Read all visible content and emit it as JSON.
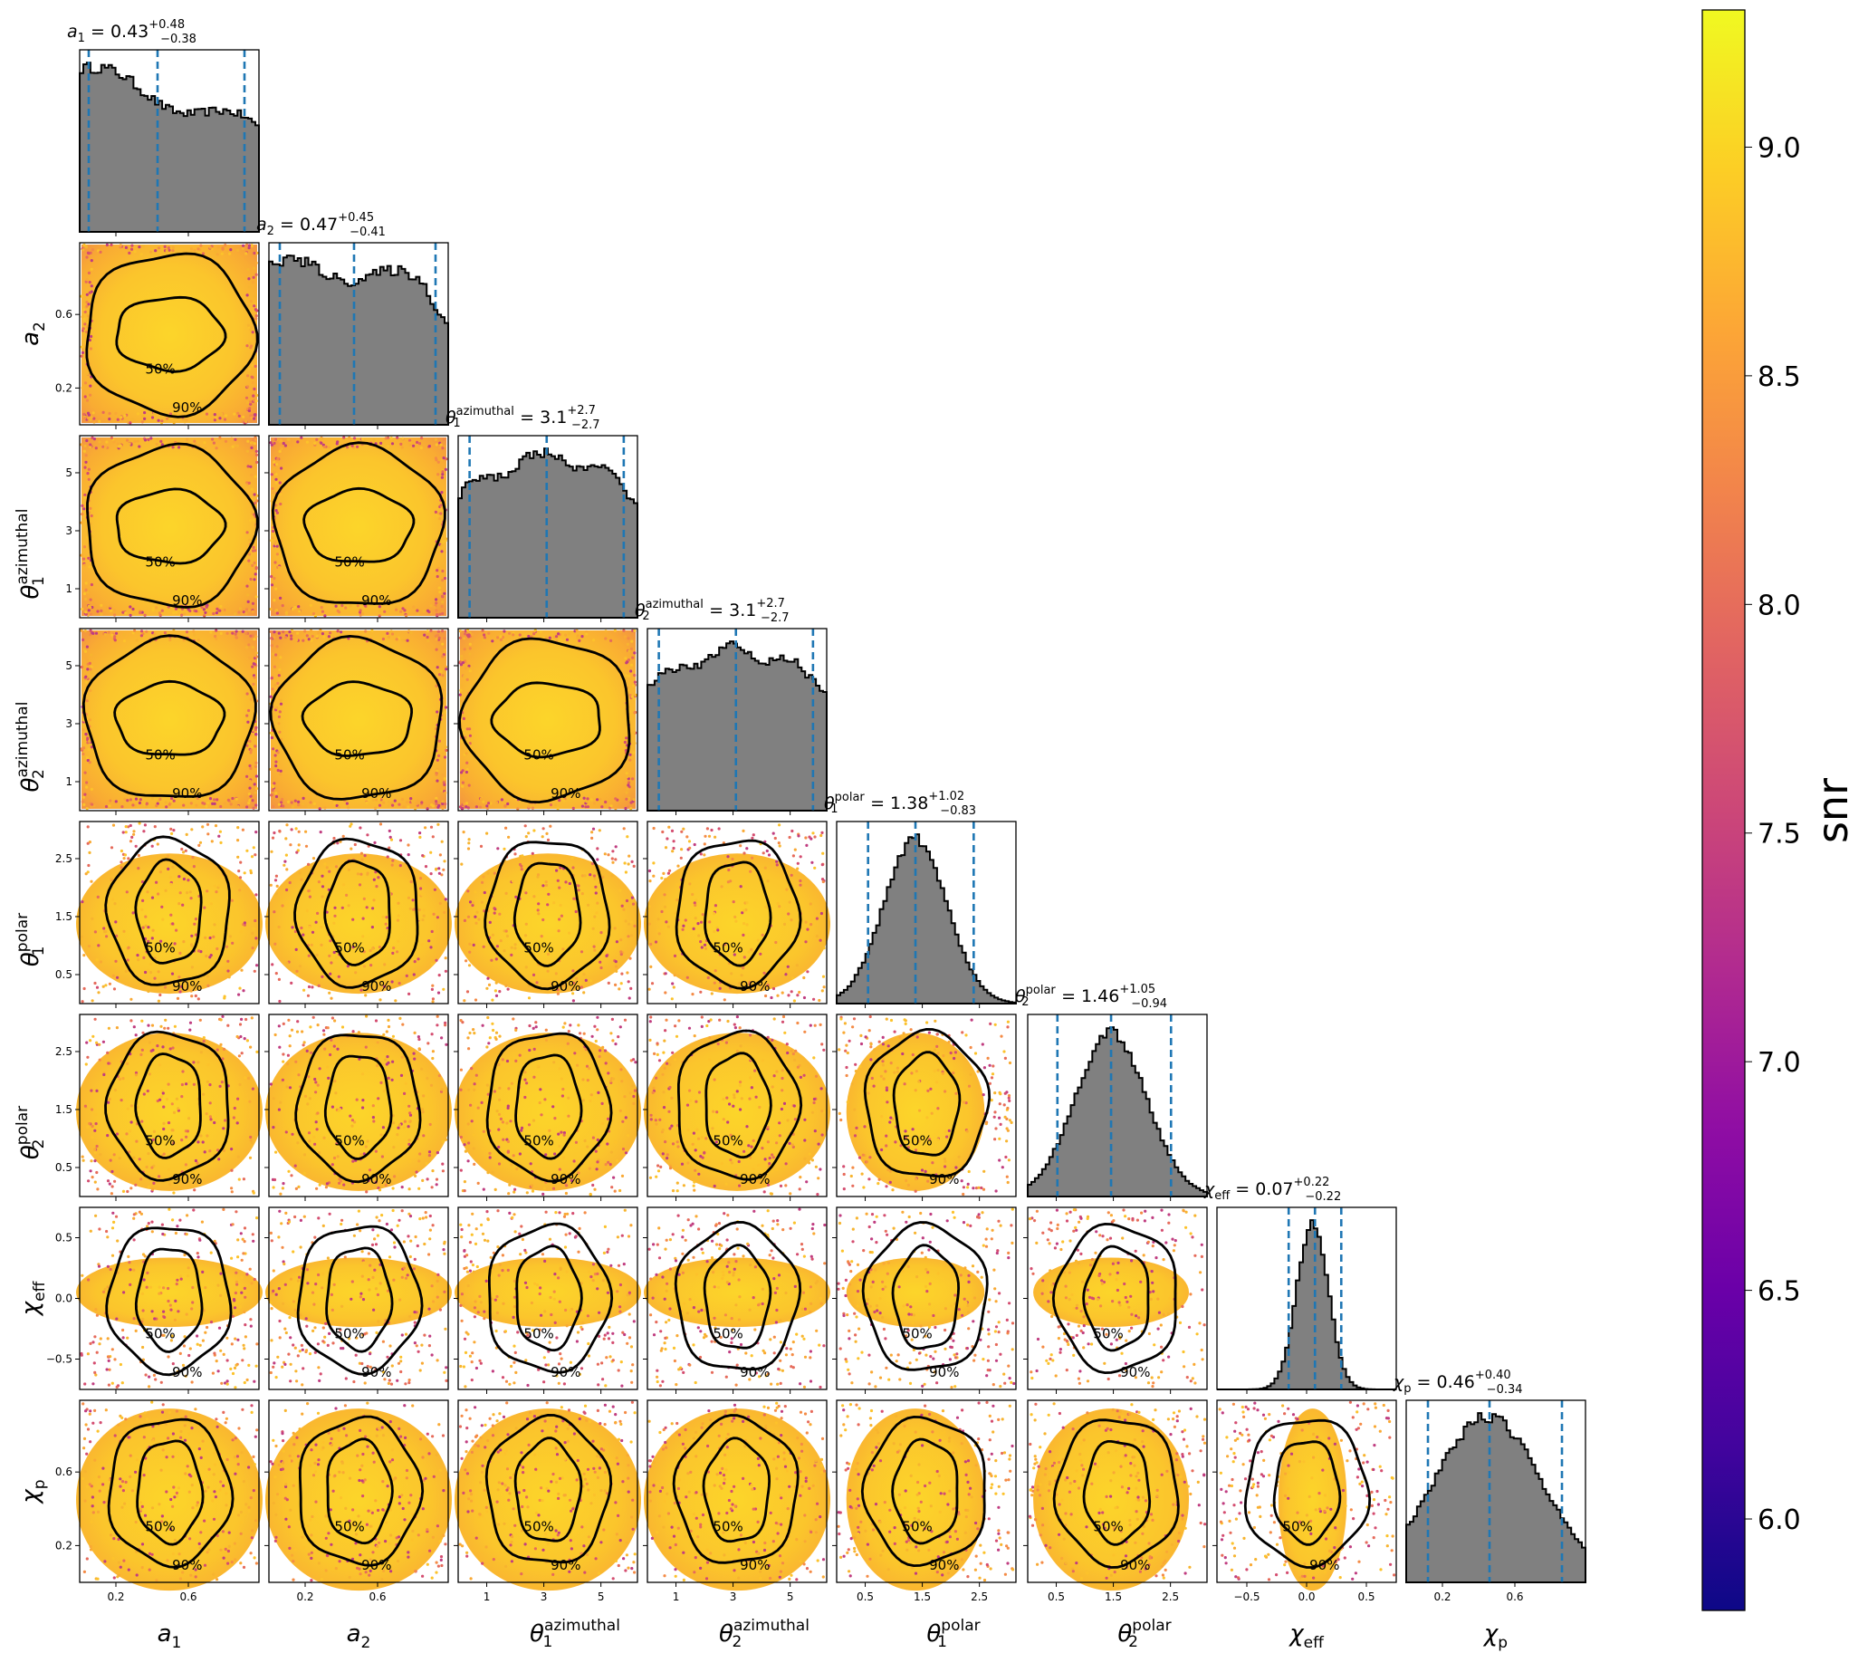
{
  "chart_data": {
    "type": "scatter",
    "description_type": "corner",
    "parameters": [
      {
        "key": "a1",
        "label_base": "a",
        "label_sub": "1",
        "label_sup": "",
        "range": [
          0,
          0.99
        ],
        "ticks": [
          0.2,
          0.6
        ],
        "tick_labels": [
          "0.2",
          "0.6"
        ],
        "title_base": "a",
        "title_sub": "1",
        "title_sup": "",
        "median": "0.43",
        "plus": "+0.48",
        "minus": "−0.38",
        "q": [
          0.05,
          0.43,
          0.91
        ],
        "shape": "spin1"
      },
      {
        "key": "a2",
        "label_base": "a",
        "label_sub": "2",
        "label_sup": "",
        "range": [
          0,
          0.99
        ],
        "ticks": [
          0.2,
          0.6
        ],
        "tick_labels": [
          "0.2",
          "0.6"
        ],
        "title_base": "a",
        "title_sub": "2",
        "title_sup": "",
        "median": "0.47",
        "plus": "+0.45",
        "minus": "−0.41",
        "q": [
          0.06,
          0.47,
          0.92
        ],
        "shape": "flatdrop"
      },
      {
        "key": "theta1_azimuthal",
        "label_base": "θ",
        "label_sub": "1",
        "label_sup": "azimuthal",
        "range": [
          0,
          6.28
        ],
        "ticks": [
          1,
          3,
          5
        ],
        "tick_labels": [
          "1",
          "3",
          "5"
        ],
        "title_base": "θ",
        "title_sub": "1",
        "title_sup": "azimuthal",
        "median": "3.1",
        "plus": "+2.7",
        "minus": "−2.7",
        "q": [
          0.4,
          3.1,
          5.8
        ],
        "shape": "uniformish"
      },
      {
        "key": "theta2_azimuthal",
        "label_base": "θ",
        "label_sub": "2",
        "label_sup": "azimuthal",
        "range": [
          0,
          6.28
        ],
        "ticks": [
          1,
          3,
          5
        ],
        "tick_labels": [
          "1",
          "3",
          "5"
        ],
        "title_base": "θ",
        "title_sub": "2",
        "title_sup": "azimuthal",
        "median": "3.1",
        "plus": "+2.7",
        "minus": "−2.7",
        "q": [
          0.4,
          3.1,
          5.8
        ],
        "shape": "uniformish"
      },
      {
        "key": "theta1_polar",
        "label_base": "θ",
        "label_sub": "1",
        "label_sup": "polar",
        "range": [
          0,
          3.14
        ],
        "ticks": [
          0.5,
          1.5,
          2.5
        ],
        "tick_labels": [
          "0.5",
          "1.5",
          "2.5"
        ],
        "title_base": "θ",
        "title_sub": "1",
        "title_sup": "polar",
        "median": "1.38",
        "plus": "+1.02",
        "minus": "−0.83",
        "q": [
          0.55,
          1.38,
          2.4
        ],
        "shape": "peak",
        "peak": 1.38,
        "width": 0.55
      },
      {
        "key": "theta2_polar",
        "label_base": "θ",
        "label_sub": "2",
        "label_sup": "polar",
        "range": [
          0,
          3.14
        ],
        "ticks": [
          0.5,
          1.5,
          2.5
        ],
        "tick_labels": [
          "0.5",
          "1.5",
          "2.5"
        ],
        "title_base": "θ",
        "title_sub": "2",
        "title_sup": "polar",
        "median": "1.46",
        "plus": "+1.05",
        "minus": "−0.94",
        "q": [
          0.52,
          1.46,
          2.51
        ],
        "shape": "peak",
        "peak": 1.46,
        "width": 0.62
      },
      {
        "key": "chi_eff",
        "label_base": "χ",
        "label_sub": "eff",
        "label_sup": "",
        "range": [
          -0.75,
          0.75
        ],
        "ticks": [
          -0.5,
          0.0,
          0.5
        ],
        "tick_labels": [
          "−0.5",
          "0.0",
          "0.5"
        ],
        "title_base": "χ",
        "title_sub": "eff",
        "title_sup": "",
        "median": "0.07",
        "plus": "+0.22",
        "minus": "−0.22",
        "q": [
          -0.15,
          0.07,
          0.29
        ],
        "shape": "peak",
        "peak": 0.05,
        "width": 0.13
      },
      {
        "key": "chi_p",
        "label_base": "χ",
        "label_sub": "p",
        "label_sup": "",
        "range": [
          0,
          0.99
        ],
        "ticks": [
          0.2,
          0.6
        ],
        "tick_labels": [
          "0.2",
          "0.6"
        ],
        "title_base": "χ",
        "title_sub": "p",
        "title_sup": "",
        "median": "0.46",
        "plus": "+0.40",
        "minus": "−0.34",
        "q": [
          0.12,
          0.46,
          0.86
        ],
        "shape": "peak",
        "peak": 0.45,
        "width": 0.3
      }
    ],
    "contour_labels": [
      "50%",
      "90%"
    ],
    "colorbar": {
      "label": "snr",
      "range": [
        5.8,
        9.3
      ],
      "ticks": [
        6.0,
        6.5,
        7.0,
        7.5,
        8.0,
        8.5,
        9.0
      ],
      "tick_labels": [
        "6.0",
        "6.5",
        "7.0",
        "7.5",
        "8.0",
        "8.5",
        "9.0"
      ],
      "colormap": "plasma"
    },
    "colors": {
      "histogram_fill": "#808080",
      "quantile_line": "#1f77b4",
      "contour": "#000000"
    }
  }
}
